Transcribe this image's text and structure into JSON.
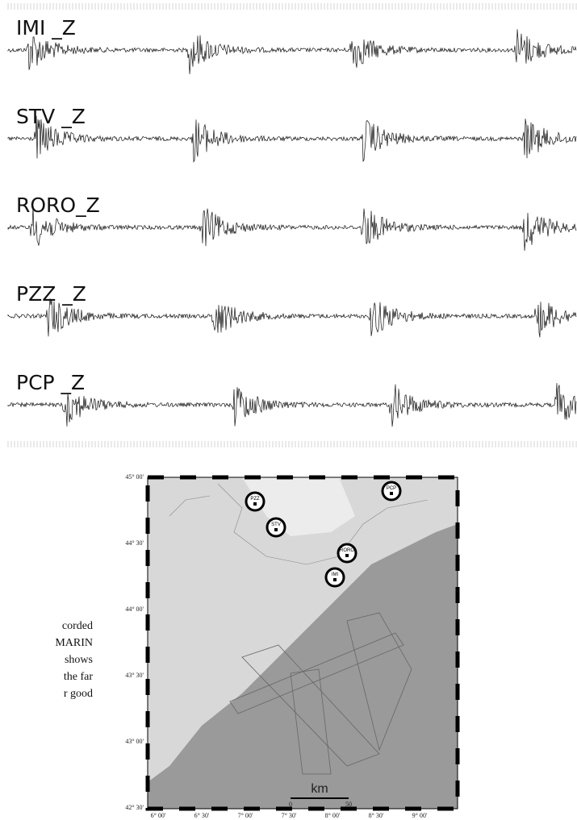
{
  "traces": [
    {
      "label": "IMI _Z"
    },
    {
      "label": "STV _Z"
    },
    {
      "label": "RORO_Z"
    },
    {
      "label": "PZZ _Z"
    },
    {
      "label": "PCP _Z"
    }
  ],
  "map": {
    "lat_labels": [
      "45° 00'",
      "44° 30'",
      "44° 00'",
      "43° 30'",
      "43° 00'",
      "42° 30'"
    ],
    "lon_labels": [
      "6° 00'",
      "6° 30'",
      "7° 00'",
      "7° 30'",
      "8° 00'",
      "8° 30'",
      "9° 00'"
    ],
    "stations": [
      "PZZ",
      "STV",
      "RORO",
      "IMI",
      "PCP"
    ],
    "scale": {
      "unit": "km",
      "start": "0",
      "end": "50"
    }
  },
  "caption_fragment": [
    "corded",
    "MARIN",
    "shows",
    "the far",
    "r good"
  ]
}
